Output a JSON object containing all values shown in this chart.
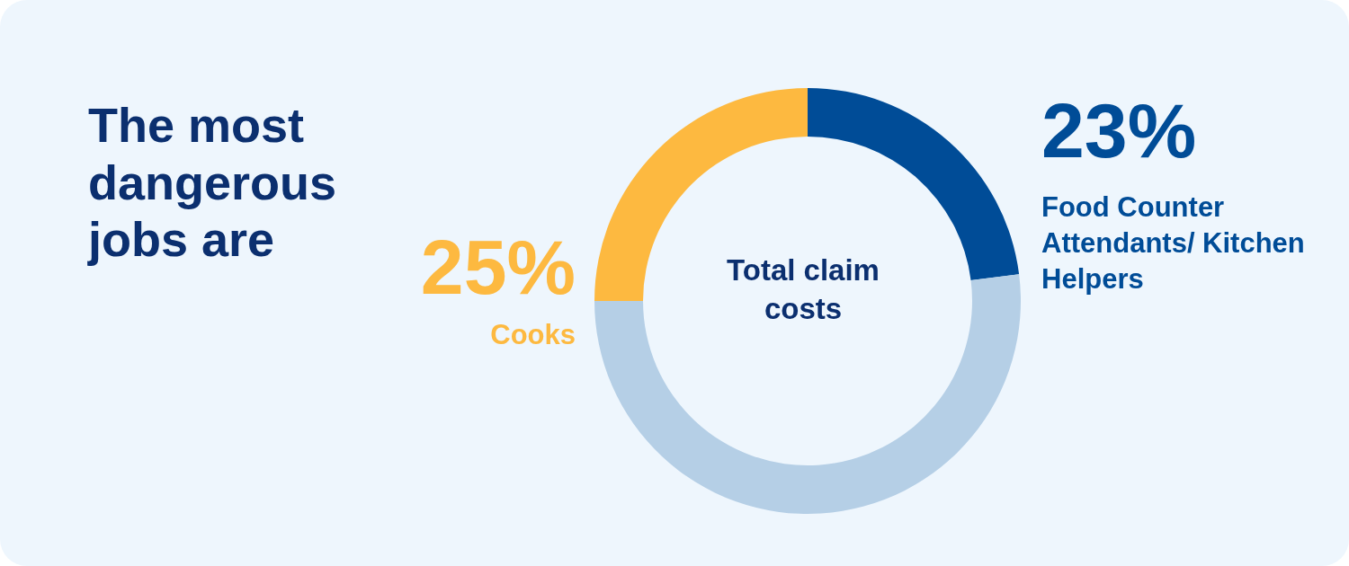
{
  "chart_data": {
    "type": "donut",
    "title": "The most dangerous jobs are",
    "categories": [
      "Food Counter Attendants/ Kitchen Helpers",
      null,
      "Cooks"
    ],
    "values": [
      23,
      52,
      25
    ],
    "colors": [
      "#004c97",
      "#b5cfe6",
      "#fdb940"
    ],
    "value_labels": [
      "23%",
      null,
      "25%"
    ],
    "annotations": [
      "Total claim costs"
    ]
  }
}
